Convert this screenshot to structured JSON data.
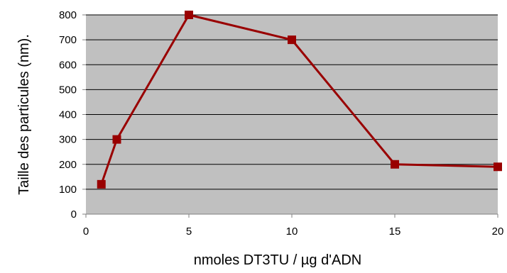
{
  "chart_data": {
    "type": "scatter",
    "title": "",
    "xlabel": "nmoles DT3TU / µg d'ADN",
    "ylabel": "Taille des particules (nm).",
    "xlim": [
      0,
      20
    ],
    "ylim": [
      0,
      800
    ],
    "x_ticks": [
      "0",
      "5",
      "10",
      "15",
      "20"
    ],
    "y_ticks": [
      "0",
      "100",
      "200",
      "300",
      "400",
      "500",
      "600",
      "700",
      "800"
    ],
    "grid": "horizontal major gridlines",
    "legend": "none",
    "series": [
      {
        "marker": "square",
        "line": true,
        "x": [
          0.75,
          1.5,
          5,
          10,
          15,
          20
        ],
        "y": [
          120,
          300,
          800,
          700,
          200,
          190
        ]
      }
    ],
    "colors": {
      "plot_background": "#c0c0c0",
      "series": "#990000",
      "gridline": "#000000",
      "axis": "#808080"
    }
  }
}
